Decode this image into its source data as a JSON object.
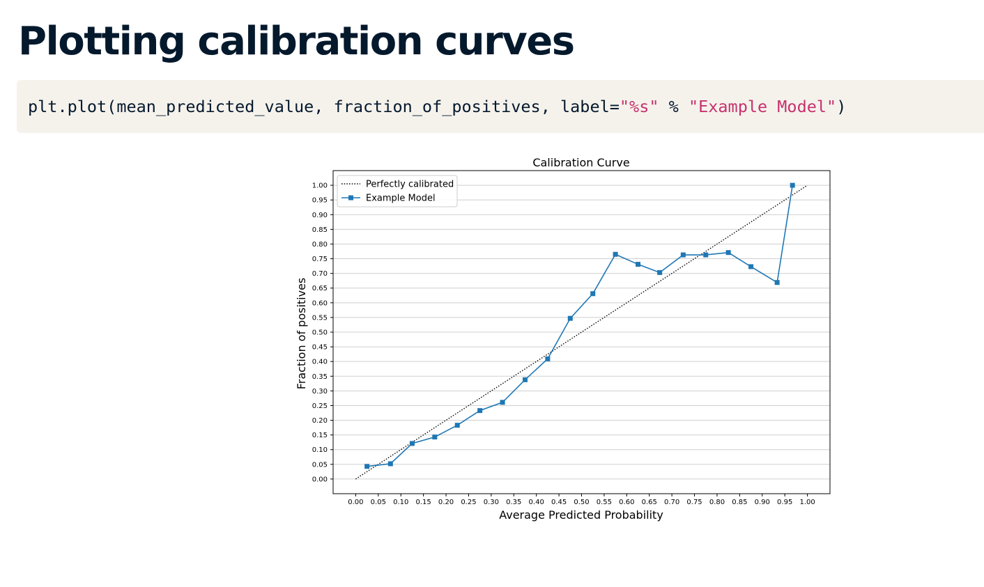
{
  "slide": {
    "title": "Plotting calibration curves"
  },
  "code": {
    "prefix": "plt.plot(mean_predicted_value, fraction_of_positives, label=",
    "string1": "\"%s\"",
    "operator": " % ",
    "string2": "\"Example Model\"",
    "suffix": ")"
  },
  "colors": {
    "title": "#05192d",
    "code_background": "#f5f2ec",
    "code_string": "#c7316e",
    "model_line": "#1f77b4",
    "diagonal": "#000000"
  },
  "chart_data": {
    "type": "line",
    "title": "Calibration Curve",
    "xlabel": "Average Predicted Probability",
    "ylabel": "Fraction of positives",
    "xlim": [
      -0.05,
      1.05
    ],
    "ylim": [
      -0.05,
      1.05
    ],
    "x_ticks": [
      "0.00",
      "0.05",
      "0.10",
      "0.15",
      "0.20",
      "0.25",
      "0.30",
      "0.35",
      "0.40",
      "0.45",
      "0.50",
      "0.55",
      "0.60",
      "0.65",
      "0.70",
      "0.75",
      "0.80",
      "0.85",
      "0.90",
      "0.95",
      "1.00"
    ],
    "y_ticks": [
      "0.00",
      "0.05",
      "0.10",
      "0.15",
      "0.20",
      "0.25",
      "0.30",
      "0.35",
      "0.40",
      "0.45",
      "0.50",
      "0.55",
      "0.60",
      "0.65",
      "0.70",
      "0.75",
      "0.80",
      "0.85",
      "0.90",
      "0.95",
      "1.00"
    ],
    "grid": "horizontal",
    "legend_position": "top-left",
    "series": [
      {
        "name": "Perfectly calibrated",
        "style": "dotted",
        "color": "#000000",
        "x": [
          0.0,
          1.0
        ],
        "y": [
          0.0,
          1.0
        ]
      },
      {
        "name": "Example Model",
        "style": "solid",
        "marker": "square",
        "color": "#1f77b4",
        "x": [
          0.025,
          0.077,
          0.125,
          0.175,
          0.225,
          0.275,
          0.325,
          0.375,
          0.425,
          0.475,
          0.525,
          0.575,
          0.625,
          0.673,
          0.725,
          0.775,
          0.825,
          0.875,
          0.933,
          0.967
        ],
        "y": [
          0.043,
          0.052,
          0.121,
          0.143,
          0.183,
          0.233,
          0.261,
          0.338,
          0.409,
          0.547,
          0.631,
          0.765,
          0.731,
          0.703,
          0.763,
          0.763,
          0.771,
          0.723,
          0.669,
          1.0
        ]
      }
    ]
  }
}
